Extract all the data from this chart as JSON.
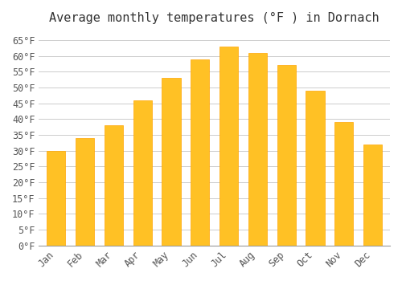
{
  "title": "Average monthly temperatures (°F ) in Dornach",
  "months": [
    "Jan",
    "Feb",
    "Mar",
    "Apr",
    "May",
    "Jun",
    "Jul",
    "Aug",
    "Sep",
    "Oct",
    "Nov",
    "Dec"
  ],
  "values": [
    30,
    34,
    38,
    46,
    53,
    59,
    63,
    61,
    57,
    49,
    39,
    32
  ],
  "bar_color_face": "#FFC125",
  "bar_color_edge": "#FFA500",
  "background_color": "#FFFFFF",
  "grid_color": "#CCCCCC",
  "ylim": [
    0,
    68
  ],
  "yticks": [
    0,
    5,
    10,
    15,
    20,
    25,
    30,
    35,
    40,
    45,
    50,
    55,
    60,
    65
  ],
  "ylabel_suffix": "°F",
  "title_fontsize": 11,
  "tick_fontsize": 8.5,
  "font_family": "monospace"
}
